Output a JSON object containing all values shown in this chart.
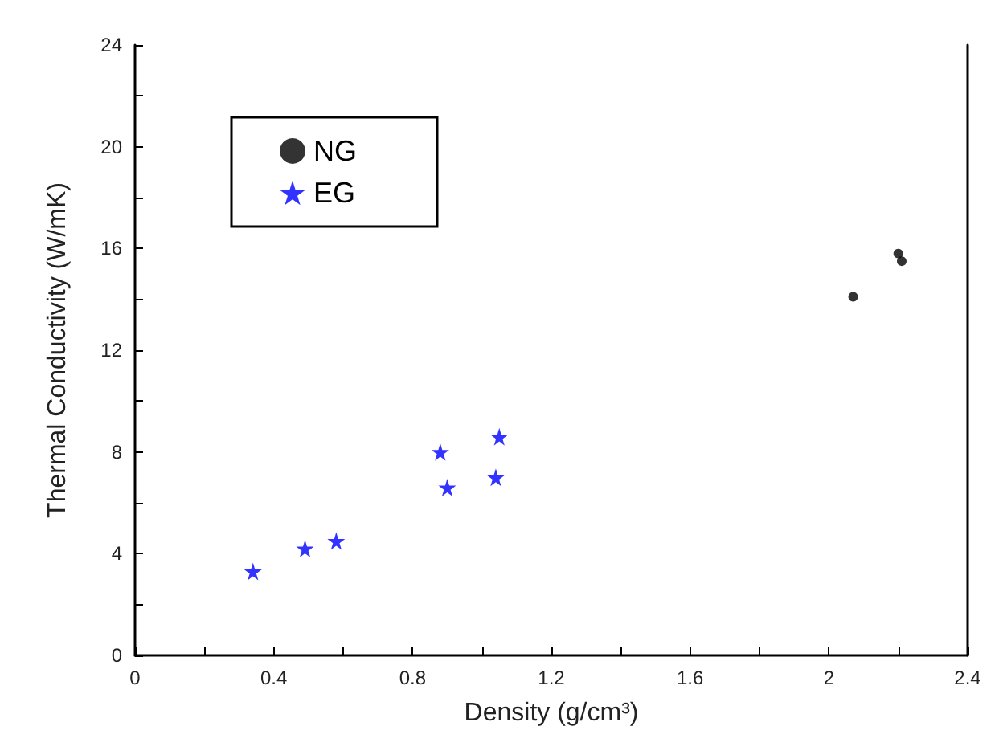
{
  "chart_data": {
    "type": "scatter",
    "xlabel": "Density (g/cm³)",
    "ylabel": "Thermal Conductivity (W/mK)",
    "xlim": [
      0,
      2.4
    ],
    "xticks": [
      0,
      0.4,
      0.8,
      1.2,
      1.6,
      2,
      2.4
    ],
    "ylim": [
      0,
      24
    ],
    "yticks": [
      0,
      4,
      8,
      12,
      16,
      20,
      24
    ],
    "grid": false,
    "legend": "top left",
    "series": [
      {
        "name": "NG",
        "color": "#000000",
        "marker": "circle",
        "x": [
          2.07,
          2.2,
          2.21
        ],
        "values": [
          14.1,
          15.8,
          15.5
        ]
      },
      {
        "name": "EG",
        "color": "#0000ff",
        "marker": "star",
        "x": [
          0.34,
          0.49,
          0.58,
          0.88,
          0.9,
          1.04,
          1.05
        ],
        "values": [
          3.3,
          4.2,
          4.5,
          8.0,
          6.6,
          7.0,
          8.6
        ]
      }
    ]
  }
}
